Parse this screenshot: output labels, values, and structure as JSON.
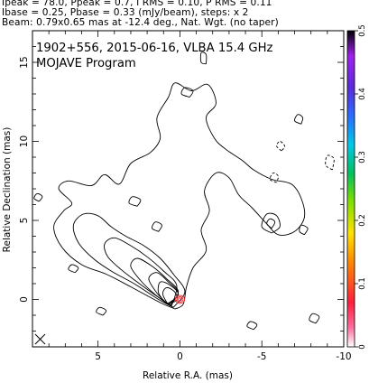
{
  "header": {
    "line1": "Ipeak = 78.0, Ppeak = 0.7, I RMS = 0.10, P RMS = 0.11",
    "line2": "Ibase = 0.25, Pbase = 0.33 (mJy/beam), steps: x 2",
    "line3": "Beam: 0.79x0.65 mas at -12.4 deg., Nat. Wgt. (no taper)"
  },
  "colors": {
    "frame": "#000000",
    "contour": "#000000",
    "core_contour": "#e8333a",
    "colorbar": [
      "#ffffff",
      "#ff6fa0",
      "#ff1e3c",
      "#ff8a00",
      "#ffe100",
      "#7ee000",
      "#00c060",
      "#00c8e8",
      "#2b6cff",
      "#5a2bd8",
      "#a020f0",
      "#000000"
    ]
  },
  "chart_data": {
    "type": "contour",
    "title": "1902+556, 2015-06-16, VLBA 15.4 GHz",
    "subtitle": "MOJAVE Program",
    "xlabel": "Relative R.A. (mas)",
    "ylabel": "Relative Declination (mas)",
    "xlim": [
      9,
      -10
    ],
    "ylim": [
      -3,
      17
    ],
    "xticks": [
      5,
      0,
      -5,
      -10
    ],
    "yticks": [
      0,
      5,
      10,
      15
    ],
    "colorbar": {
      "range": [
        0,
        0.5
      ],
      "ticks": [
        0,
        0.1,
        0.2,
        0.3,
        0.4,
        0.5
      ]
    },
    "beam": {
      "major": 0.79,
      "minor": 0.65,
      "pa_deg": -12.4
    },
    "core": {
      "x": 0,
      "y": 0,
      "peak_mJy_per_beam": 78.0
    },
    "contours": [
      {
        "level": "outer",
        "points": [
          [
            0.3,
            -0.6
          ],
          [
            1.2,
            -0.2
          ],
          [
            3.0,
            0.8
          ],
          [
            4.5,
            1.6
          ],
          [
            6.0,
            2.2
          ],
          [
            7.2,
            3.3
          ],
          [
            7.7,
            4.6
          ],
          [
            7.1,
            5.6
          ],
          [
            6.6,
            6.1
          ],
          [
            7.4,
            7.0
          ],
          [
            6.8,
            7.5
          ],
          [
            5.4,
            7.2
          ],
          [
            4.6,
            7.9
          ],
          [
            3.7,
            7.3
          ],
          [
            3.0,
            8.6
          ],
          [
            1.8,
            9.3
          ],
          [
            1.2,
            10.2
          ],
          [
            1.4,
            11.5
          ],
          [
            0.7,
            12.8
          ],
          [
            0.3,
            13.7
          ],
          [
            -0.7,
            13.2
          ],
          [
            -1.7,
            13.6
          ],
          [
            -2.2,
            12.4
          ],
          [
            -1.6,
            11.5
          ],
          [
            -2.1,
            10.2
          ],
          [
            -2.8,
            9.5
          ],
          [
            -3.8,
            8.8
          ],
          [
            -4.5,
            8.2
          ],
          [
            -5.6,
            7.6
          ],
          [
            -6.8,
            7.3
          ],
          [
            -7.4,
            6.4
          ],
          [
            -7.6,
            5.2
          ],
          [
            -7.0,
            4.3
          ],
          [
            -6.0,
            4.1
          ],
          [
            -5.2,
            4.9
          ],
          [
            -4.4,
            5.8
          ],
          [
            -3.6,
            6.6
          ],
          [
            -3.0,
            7.7
          ],
          [
            -2.2,
            8.0
          ],
          [
            -1.5,
            6.9
          ],
          [
            -1.8,
            5.6
          ],
          [
            -1.3,
            4.4
          ],
          [
            -1.6,
            3.1
          ],
          [
            -0.8,
            2.0
          ],
          [
            -0.4,
            0.8
          ],
          [
            -0.2,
            -0.3
          ],
          [
            0.3,
            -0.6
          ]
        ]
      },
      {
        "level": "2",
        "points": [
          [
            0.4,
            -0.5
          ],
          [
            1.3,
            0.0
          ],
          [
            2.8,
            1.0
          ],
          [
            4.2,
            1.8
          ],
          [
            5.3,
            2.6
          ],
          [
            6.2,
            3.6
          ],
          [
            6.5,
            4.7
          ],
          [
            5.9,
            5.4
          ],
          [
            5.0,
            5.3
          ],
          [
            4.2,
            4.6
          ],
          [
            3.3,
            4.0
          ],
          [
            2.2,
            3.4
          ],
          [
            1.2,
            2.6
          ],
          [
            0.4,
            1.6
          ],
          [
            -0.3,
            0.5
          ],
          [
            0.4,
            -0.5
          ]
        ]
      },
      {
        "level": "3",
        "points": [
          [
            0.5,
            -0.4
          ],
          [
            1.4,
            0.2
          ],
          [
            2.6,
            1.1
          ],
          [
            3.6,
            1.9
          ],
          [
            4.4,
            2.7
          ],
          [
            4.6,
            3.5
          ],
          [
            4.0,
            3.9
          ],
          [
            3.0,
            3.4
          ],
          [
            2.0,
            2.7
          ],
          [
            1.0,
            1.8
          ],
          [
            0.2,
            0.9
          ],
          [
            0.5,
            -0.4
          ]
        ]
      },
      {
        "level": "4",
        "points": [
          [
            0.6,
            -0.4
          ],
          [
            1.5,
            0.3
          ],
          [
            2.4,
            1.2
          ],
          [
            3.0,
            2.1
          ],
          [
            2.6,
            2.6
          ],
          [
            1.7,
            2.1
          ],
          [
            0.8,
            1.3
          ],
          [
            0.1,
            0.5
          ],
          [
            0.6,
            -0.4
          ]
        ]
      },
      {
        "level": "5",
        "points": [
          [
            0.7,
            -0.35
          ],
          [
            1.4,
            0.4
          ],
          [
            1.9,
            1.3
          ],
          [
            1.4,
            1.7
          ],
          [
            0.7,
            1.1
          ],
          [
            0.1,
            0.4
          ],
          [
            0.7,
            -0.35
          ]
        ]
      },
      {
        "level": "6",
        "points": [
          [
            0.8,
            -0.3
          ],
          [
            1.3,
            0.4
          ],
          [
            1.2,
            1.1
          ],
          [
            0.6,
            0.9
          ],
          [
            0.1,
            0.3
          ],
          [
            0.8,
            -0.3
          ]
        ]
      },
      {
        "level": "7",
        "points": [
          [
            0.75,
            -0.28
          ],
          [
            1.05,
            0.35
          ],
          [
            0.8,
            0.75
          ],
          [
            0.3,
            0.45
          ],
          [
            0.2,
            -0.05
          ],
          [
            0.75,
            -0.28
          ]
        ]
      },
      {
        "level": "lobe",
        "points": [
          [
            -5.6,
            4.2
          ],
          [
            -5.0,
            4.6
          ],
          [
            -5.3,
            5.4
          ],
          [
            -5.9,
            5.3
          ],
          [
            -6.1,
            4.6
          ],
          [
            -5.6,
            4.2
          ]
        ]
      },
      {
        "level": "lobe-inner",
        "points": [
          [
            -5.6,
            4.5
          ],
          [
            -5.3,
            4.8
          ],
          [
            -5.5,
            5.1
          ],
          [
            -5.8,
            4.9
          ],
          [
            -5.6,
            4.5
          ]
        ]
      },
      {
        "level": "island",
        "points": [
          [
            2.6,
            5.9
          ],
          [
            3.1,
            6.1
          ],
          [
            2.9,
            6.5
          ],
          [
            2.4,
            6.3
          ],
          [
            2.6,
            5.9
          ]
        ]
      },
      {
        "level": "island",
        "points": [
          [
            -0.6,
            12.8
          ],
          [
            -0.1,
            13.0
          ],
          [
            -0.3,
            13.4
          ],
          [
            -0.8,
            13.2
          ],
          [
            -0.6,
            12.8
          ]
        ]
      },
      {
        "level": "island",
        "points": [
          [
            -7.4,
            11.1
          ],
          [
            -7.0,
            11.3
          ],
          [
            -7.2,
            11.7
          ],
          [
            -7.5,
            11.5
          ],
          [
            -7.4,
            11.1
          ]
        ]
      },
      {
        "level": "island",
        "points": [
          [
            -7.6,
            4.1
          ],
          [
            -7.3,
            4.3
          ],
          [
            -7.4,
            4.7
          ],
          [
            -7.8,
            4.5
          ],
          [
            -7.6,
            4.1
          ]
        ]
      },
      {
        "level": "island",
        "points": [
          [
            8.6,
            6.2
          ],
          [
            8.9,
            6.4
          ],
          [
            8.7,
            6.7
          ],
          [
            8.4,
            6.5
          ],
          [
            8.6,
            6.2
          ]
        ]
      },
      {
        "level": "island",
        "points": [
          [
            1.3,
            4.3
          ],
          [
            1.7,
            4.5
          ],
          [
            1.5,
            4.9
          ],
          [
            1.1,
            4.7
          ],
          [
            1.3,
            4.3
          ]
        ]
      },
      {
        "level": "island",
        "points": [
          [
            -4.5,
            -1.9
          ],
          [
            -4.1,
            -1.7
          ],
          [
            -4.3,
            -1.4
          ],
          [
            -4.7,
            -1.6
          ],
          [
            -4.5,
            -1.9
          ]
        ]
      },
      {
        "level": "island",
        "points": [
          [
            6.4,
            1.7
          ],
          [
            6.8,
            1.9
          ],
          [
            6.6,
            2.2
          ],
          [
            6.2,
            2.0
          ],
          [
            6.4,
            1.7
          ]
        ]
      },
      {
        "level": "island",
        "points": [
          [
            4.7,
            -1.0
          ],
          [
            5.1,
            -0.8
          ],
          [
            4.9,
            -0.5
          ],
          [
            4.5,
            -0.7
          ],
          [
            4.7,
            -1.0
          ]
        ]
      },
      {
        "level": "island",
        "points": [
          [
            -1.6,
            14.9
          ],
          [
            -1.3,
            15.0
          ],
          [
            -1.3,
            15.6
          ],
          [
            -1.6,
            15.5
          ],
          [
            -1.6,
            14.9
          ]
        ]
      },
      {
        "level": "island",
        "points": [
          [
            -8.3,
            -1.5
          ],
          [
            -7.9,
            -1.3
          ],
          [
            -8.1,
            -0.9
          ],
          [
            -8.5,
            -1.1
          ],
          [
            -8.3,
            -1.5
          ]
        ]
      }
    ],
    "negative_contours": [
      {
        "points": [
          [
            -9.3,
            8.2
          ],
          [
            -8.9,
            8.5
          ],
          [
            -9.0,
            9.1
          ],
          [
            -9.4,
            8.9
          ],
          [
            -9.3,
            8.2
          ]
        ]
      },
      {
        "points": [
          [
            -5.9,
            7.4
          ],
          [
            -5.5,
            7.6
          ],
          [
            -5.7,
            8.0
          ],
          [
            -6.0,
            7.8
          ],
          [
            -5.9,
            7.4
          ]
        ]
      },
      {
        "points": [
          [
            -6.2,
            9.4
          ],
          [
            -5.9,
            9.7
          ],
          [
            -6.1,
            10.0
          ],
          [
            -6.4,
            9.7
          ],
          [
            -6.2,
            9.4
          ]
        ]
      }
    ]
  }
}
